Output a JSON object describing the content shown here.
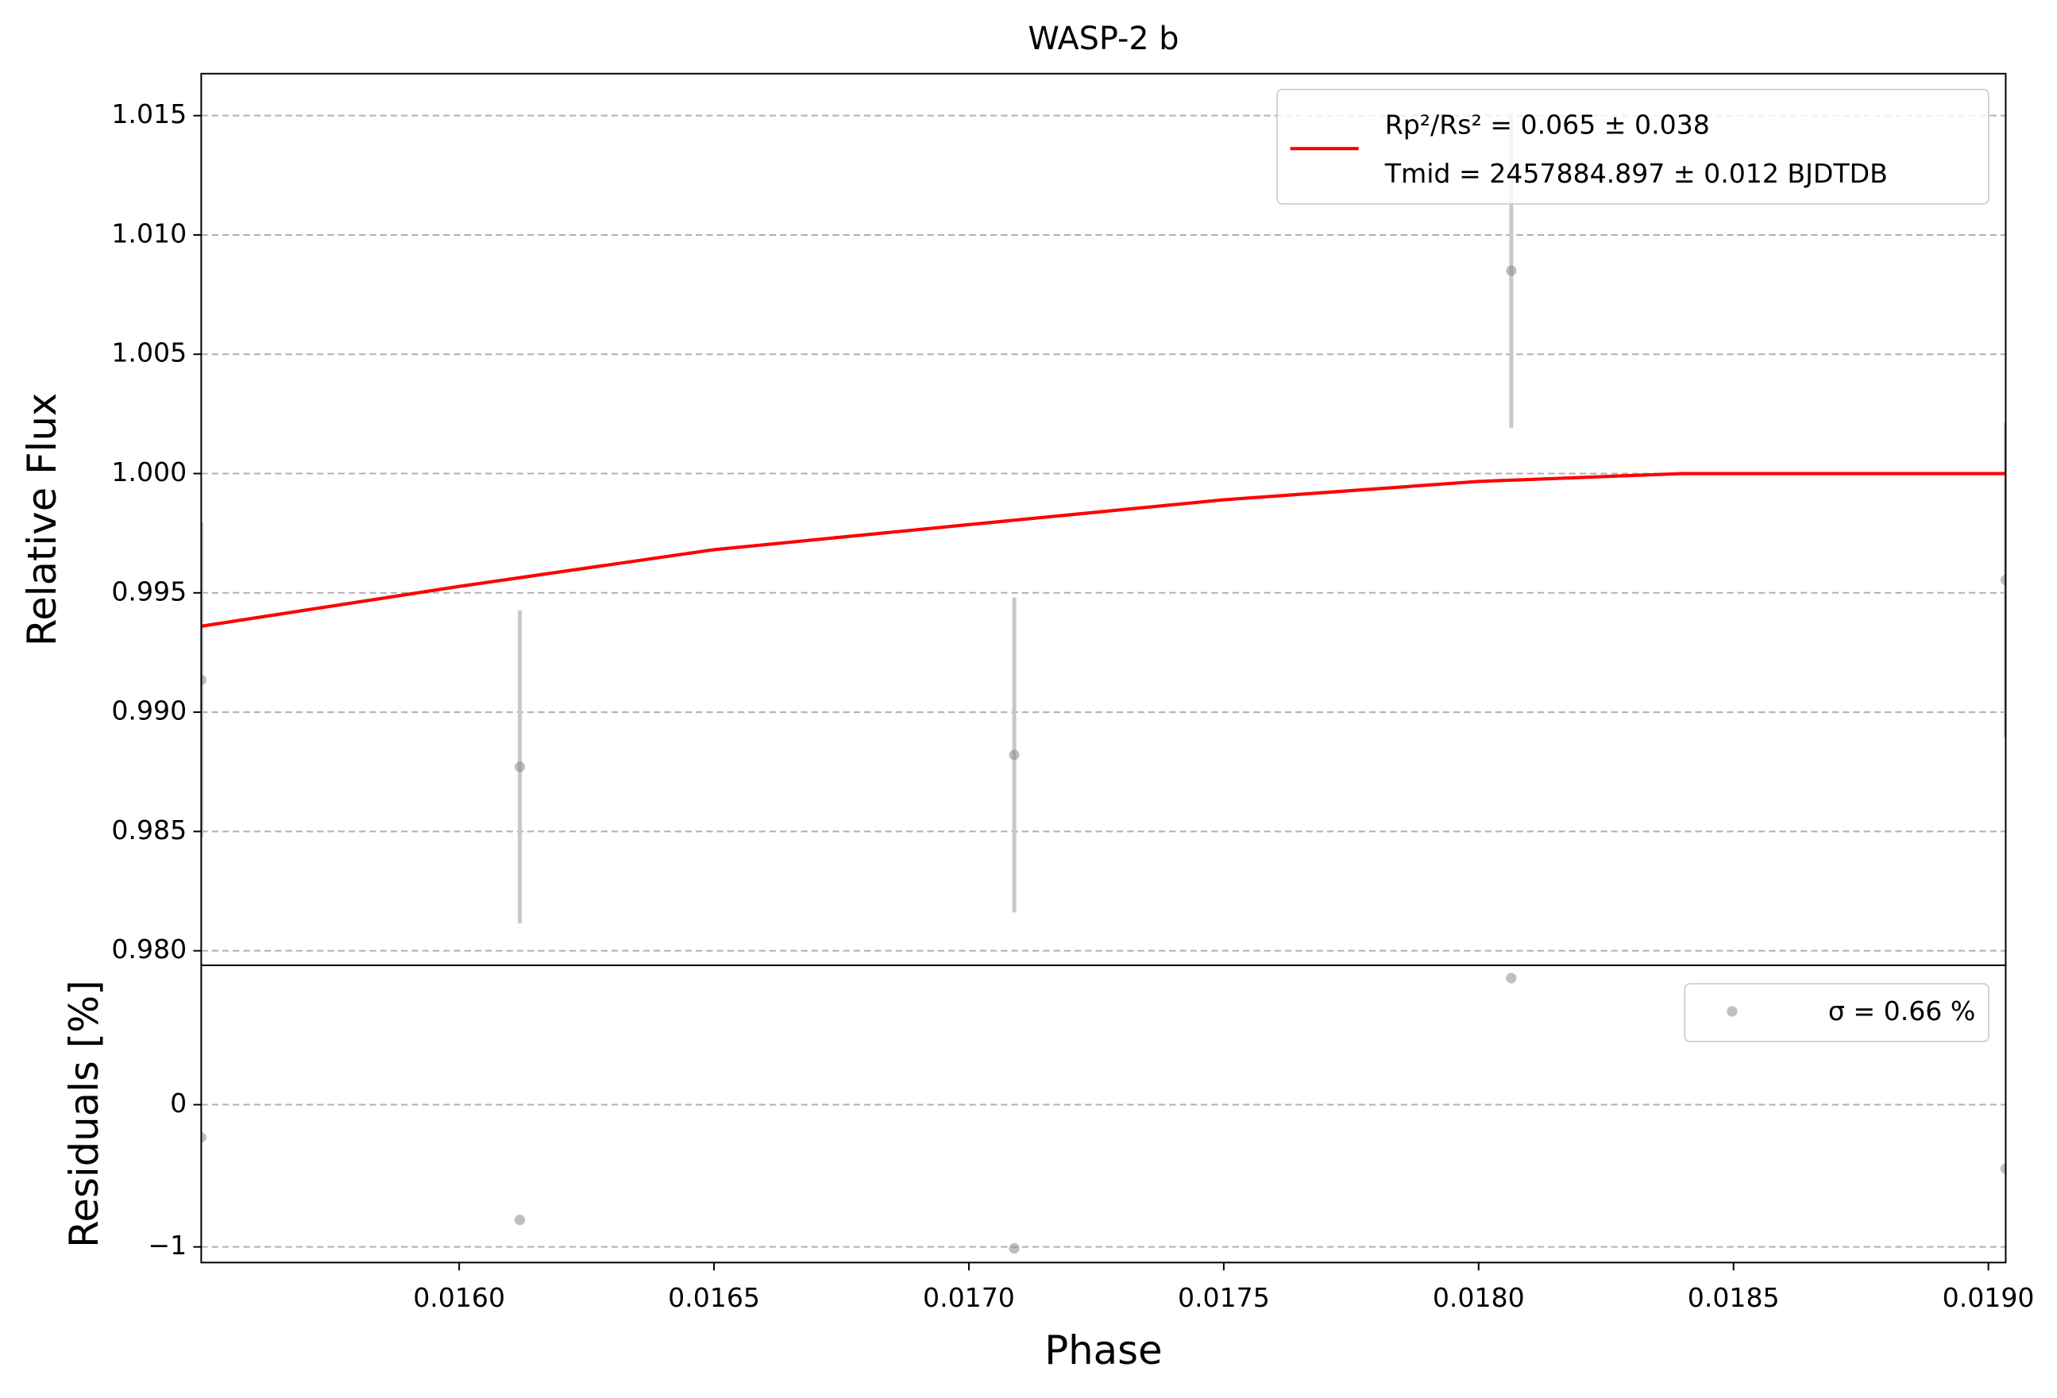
{
  "chart_data": [
    {
      "type": "scatter",
      "title": "WASP-2 b",
      "ylabel": "Relative Flux",
      "xlim": [
        0.015494,
        0.019034
      ],
      "ylim": [
        0.97939,
        1.01676
      ],
      "yticks": [
        {
          "value": 0.98,
          "label": "0.980"
        },
        0.985,
        {
          "value": 0.99,
          "label": "0.990"
        },
        0.995,
        {
          "value": 1.0,
          "label": "1.000"
        },
        1.005,
        {
          "value": 1.01,
          "label": "1.010"
        },
        1.015
      ],
      "grid": true,
      "legend_text": [
        "Rp²/Rs² = 0.065 ± 0.038",
        "Tmid = 2457884.897 ± 0.012 BJDTDB"
      ],
      "series": [
        {
          "kind": "errorbar",
          "color": "#808080",
          "ecolor": "#c8c8c8",
          "x": [
            0.015494,
            0.016119,
            0.017089,
            0.018064,
            0.019034
          ],
          "values": [
            0.99135,
            0.98771,
            0.98821,
            1.0085,
            0.99554
          ],
          "errors": [
            0.0066,
            0.00656,
            0.0066,
            0.0066,
            0.0066
          ]
        },
        {
          "kind": "line",
          "color": "#ff0000",
          "x": [
            0.015494,
            0.016,
            0.0165,
            0.017,
            0.0175,
            0.018,
            0.0184,
            0.019034
          ],
          "values": [
            0.9936,
            0.99527,
            0.99681,
            0.99786,
            0.9989,
            0.99967,
            1.0,
            1.0
          ]
        }
      ]
    },
    {
      "type": "scatter",
      "xlabel": "Phase",
      "ylabel": "Residuals [%]",
      "xlim": [
        0.015494,
        0.019034
      ],
      "ylim": [
        -1.11,
        0.98
      ],
      "xticks": [
        {
          "value": 0.016,
          "label": "0.0160"
        },
        {
          "value": 0.0165,
          "label": "0.0165"
        },
        {
          "value": 0.017,
          "label": "0.0170"
        },
        {
          "value": 0.0175,
          "label": "0.0175"
        },
        {
          "value": 0.018,
          "label": "0.0180"
        },
        {
          "value": 0.0185,
          "label": "0.0185"
        },
        {
          "value": 0.019,
          "label": "0.0190"
        }
      ],
      "yticks": [
        {
          "value": -1,
          "label": "−1"
        },
        0
      ],
      "grid": true,
      "series": [
        {
          "name": "σ = 0.66 %",
          "color": "#808080",
          "x": [
            0.015494,
            0.016119,
            0.017089,
            0.018064,
            0.019034
          ],
          "values": [
            -0.23,
            -0.81,
            -1.01,
            0.89,
            -0.45
          ]
        }
      ]
    }
  ]
}
